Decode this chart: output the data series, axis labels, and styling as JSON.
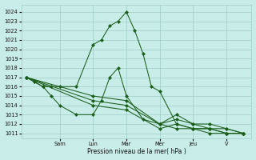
{
  "background_color": "#c8ece8",
  "grid_color": "#9eccc8",
  "line_color": "#1a5e1a",
  "xlabel": "Pression niveau de la mer( hPa )",
  "ylim": [
    1010.5,
    1024.8
  ],
  "yticks": [
    1011,
    1012,
    1013,
    1014,
    1015,
    1016,
    1017,
    1018,
    1019,
    1020,
    1021,
    1022,
    1023,
    1024
  ],
  "x_day_labels": [
    "Sam",
    "Lun",
    "Mar",
    "Mer",
    "Jeu",
    "V"
  ],
  "x_day_positions": [
    2,
    4,
    6,
    8,
    10,
    12
  ],
  "xlim": [
    -0.3,
    13.5
  ],
  "series": [
    {
      "x": [
        0,
        0.5,
        1,
        1.5,
        2,
        3,
        4,
        4.5,
        5,
        5.5,
        6,
        6.5,
        7,
        7.5,
        8,
        9,
        10,
        11,
        12,
        13
      ],
      "y": [
        1017,
        1016.5,
        1016,
        1016,
        1016,
        1016,
        1020.5,
        1021,
        1022.5,
        1023,
        1024,
        1022,
        1019.5,
        1016,
        1015.5,
        1012,
        1011.5,
        1011.5,
        1011,
        1011
      ]
    },
    {
      "x": [
        0,
        0.5,
        1,
        1.5,
        2,
        3,
        4,
        4.5,
        5,
        5.5,
        6,
        7,
        8,
        9,
        10,
        11,
        12,
        13
      ],
      "y": [
        1017,
        1016.5,
        1016,
        1015,
        1014,
        1013,
        1013,
        1014.5,
        1017,
        1018,
        1015,
        1012.5,
        1012,
        1011.5,
        1011.5,
        1011.5,
        1011,
        1011
      ]
    },
    {
      "x": [
        0,
        4,
        6,
        8,
        9,
        10,
        11,
        12,
        13
      ],
      "y": [
        1017,
        1015,
        1014.5,
        1012,
        1013,
        1012,
        1012,
        1011.5,
        1011
      ]
    },
    {
      "x": [
        0,
        4,
        6,
        8,
        9,
        10,
        11,
        12,
        13
      ],
      "y": [
        1017,
        1014.5,
        1014,
        1012,
        1012.5,
        1012,
        1011.5,
        1011.5,
        1011
      ]
    },
    {
      "x": [
        0,
        4,
        6,
        8,
        9,
        10,
        11,
        12,
        13
      ],
      "y": [
        1017,
        1014,
        1013.5,
        1011.5,
        1012,
        1011.5,
        1011,
        1011,
        1011
      ]
    }
  ]
}
